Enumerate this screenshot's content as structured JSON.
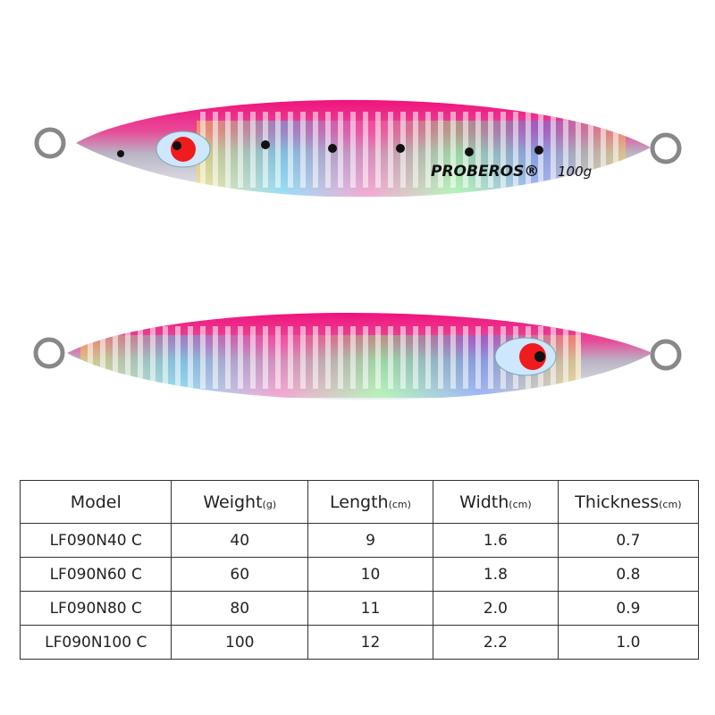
{
  "lure": {
    "brand": "PROBEROS®",
    "weight": "100g"
  },
  "table": {
    "header": [
      {
        "name": "Model"
      },
      {
        "name": "Weight",
        "unit": "(g)"
      },
      {
        "name": "Length",
        "unit": "(cm)"
      },
      {
        "name": "Width",
        "unit": "(cm)"
      },
      {
        "name": "Thickness",
        "unit": "(cm)"
      }
    ],
    "rows": [
      [
        "LF090N40 C",
        "40",
        "9",
        "1.6",
        "0.7"
      ],
      [
        "LF090N60 C",
        "60",
        "10",
        "1.8",
        "0.8"
      ],
      [
        "LF090N80 C",
        "80",
        "11",
        "2.0",
        "0.9"
      ],
      [
        "LF090N100 C",
        "100",
        "12",
        "2.2",
        "1.0"
      ]
    ]
  }
}
